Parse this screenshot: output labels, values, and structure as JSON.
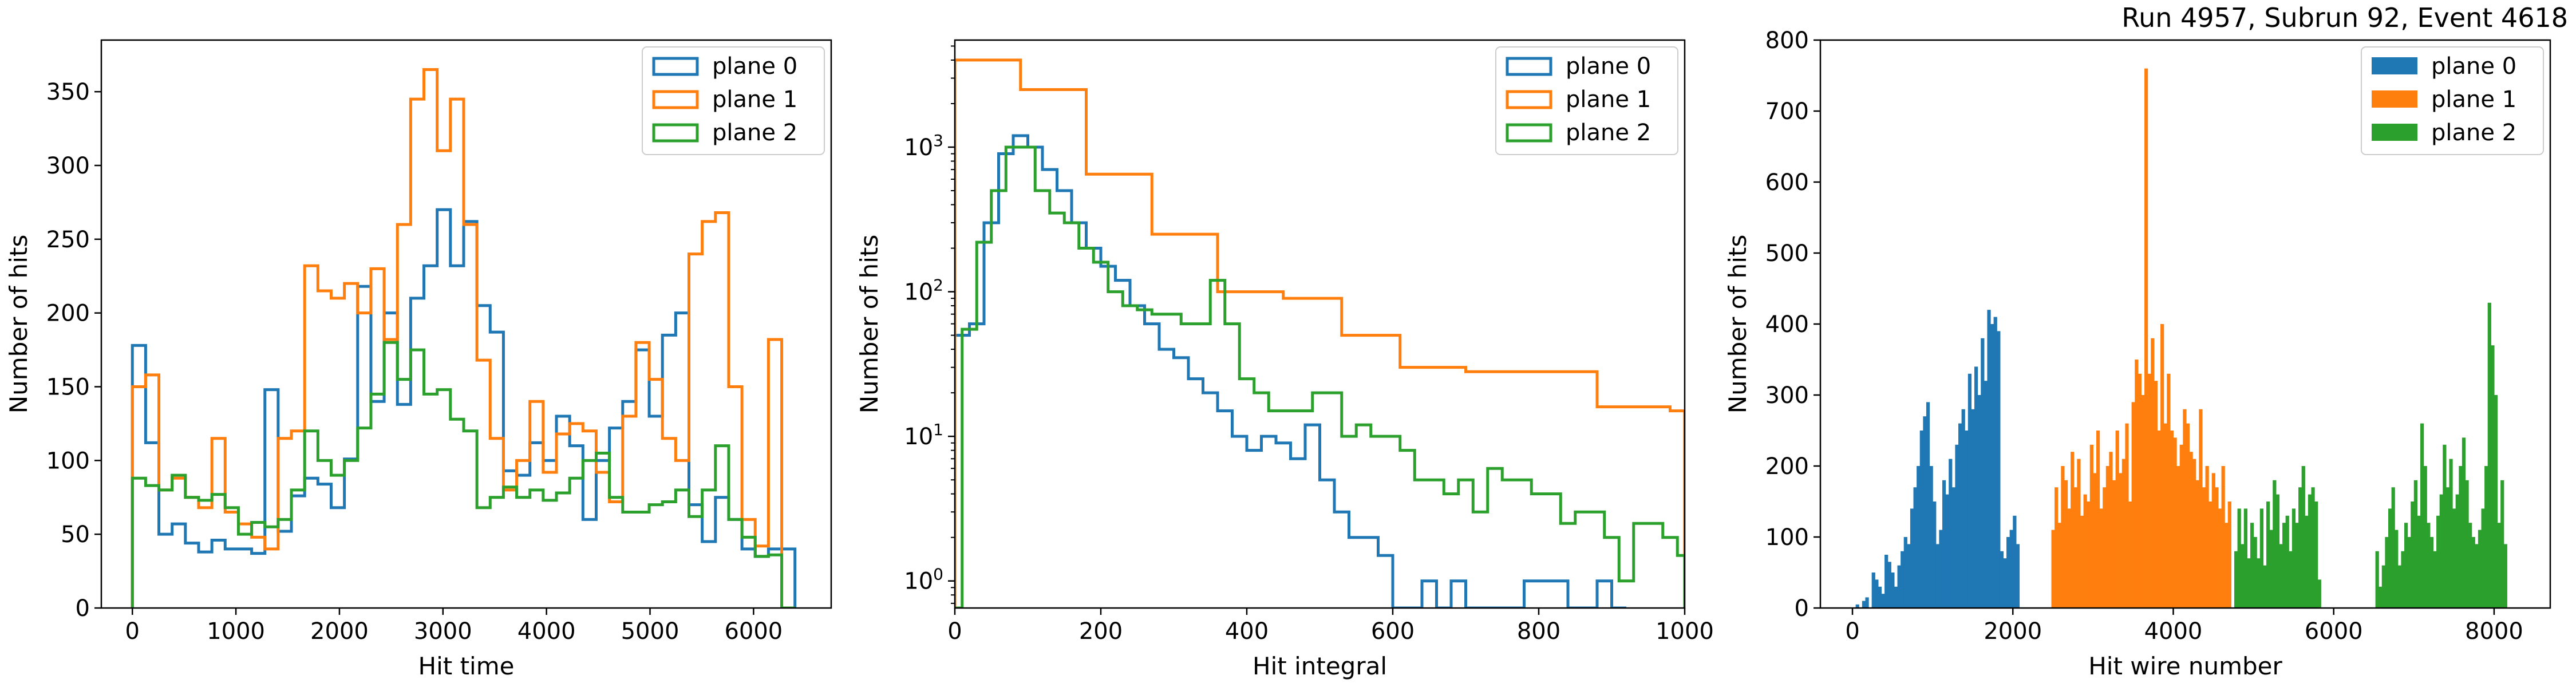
{
  "header": {
    "run_info": "Run 4957, Subrun 92, Event 4618"
  },
  "colors": {
    "plane0": "#1f77b4",
    "plane1": "#ff7f0e",
    "plane2": "#2ca02c"
  },
  "chart_data": [
    {
      "type": "step-histogram",
      "xlabel": "Hit time",
      "ylabel": "Number of hits",
      "xlim": [
        -300,
        6750
      ],
      "ylim": [
        0,
        385
      ],
      "xticks": [
        0,
        1000,
        2000,
        3000,
        4000,
        5000,
        6000
      ],
      "yticks": [
        0,
        50,
        100,
        150,
        200,
        250,
        300,
        350
      ],
      "legend": "top-right",
      "bin_edges": [
        0,
        128,
        256,
        384,
        512,
        640,
        768,
        896,
        1024,
        1152,
        1280,
        1408,
        1536,
        1664,
        1792,
        1920,
        2048,
        2176,
        2304,
        2432,
        2560,
        2688,
        2816,
        2944,
        3072,
        3200,
        3328,
        3456,
        3584,
        3712,
        3840,
        3968,
        4096,
        4224,
        4352,
        4480,
        4608,
        4736,
        4864,
        4992,
        5120,
        5248,
        5376,
        5504,
        5632,
        5760,
        5888,
        6016,
        6144,
        6272,
        6400
      ],
      "series": [
        {
          "name": "plane 0",
          "values": [
            178,
            112,
            50,
            57,
            44,
            38,
            46,
            40,
            40,
            37,
            148,
            52,
            76,
            88,
            84,
            68,
            101,
            218,
            140,
            200,
            138,
            210,
            232,
            270,
            232,
            262,
            205,
            187,
            93,
            90,
            112,
            100,
            130,
            110,
            60,
            100,
            122,
            140,
            175,
            130,
            185,
            200,
            70,
            45,
            75,
            60,
            40,
            35,
            40,
            40
          ]
        },
        {
          "name": "plane 1",
          "values": [
            150,
            158,
            80,
            88,
            75,
            68,
            115,
            65,
            57,
            48,
            40,
            115,
            120,
            232,
            215,
            210,
            220,
            200,
            230,
            182,
            260,
            345,
            365,
            310,
            345,
            260,
            168,
            115,
            80,
            100,
            140,
            92,
            118,
            125,
            120,
            92,
            72,
            130,
            180,
            155,
            115,
            100,
            240,
            262,
            268,
            150,
            60,
            42,
            182,
            0
          ]
        },
        {
          "name": "plane 2",
          "values": [
            88,
            83,
            80,
            90,
            75,
            73,
            77,
            68,
            50,
            58,
            55,
            60,
            80,
            120,
            100,
            90,
            100,
            122,
            145,
            180,
            155,
            175,
            145,
            148,
            128,
            120,
            68,
            75,
            82,
            75,
            80,
            73,
            78,
            88,
            100,
            105,
            75,
            65,
            65,
            70,
            72,
            80,
            62,
            80,
            110,
            60,
            48,
            35,
            36,
            0
          ]
        }
      ]
    },
    {
      "type": "step-histogram",
      "xlabel": "Hit integral",
      "ylabel": "Number of hits",
      "log_y": true,
      "xlim": [
        0,
        1000
      ],
      "ylim": [
        0.65,
        5500
      ],
      "xticks": [
        0,
        200,
        400,
        600,
        800,
        1000
      ],
      "yticks": [
        1,
        10,
        100,
        1000
      ],
      "ytick_labels": [
        "10^0",
        "10^1",
        "10^2",
        "10^3"
      ],
      "legend": "top-right",
      "series": [
        {
          "name": "plane 0",
          "bin_edges": [
            0,
            20,
            40,
            60,
            80,
            100,
            120,
            140,
            160,
            180,
            200,
            220,
            240,
            260,
            280,
            300,
            320,
            340,
            360,
            380,
            400,
            420,
            440,
            460,
            480,
            500,
            520,
            540,
            560,
            580,
            600,
            620,
            640,
            660,
            680,
            700,
            720,
            740,
            760,
            780,
            800,
            820,
            840,
            860,
            880,
            900,
            920
          ],
          "values": [
            50,
            60,
            300,
            900,
            1200,
            1000,
            700,
            500,
            300,
            200,
            150,
            120,
            80,
            60,
            40,
            35,
            25,
            20,
            15,
            10,
            8,
            10,
            9,
            7,
            12,
            5,
            3,
            2,
            2,
            1.5,
            0.5,
            0.5,
            1,
            0.5,
            1,
            0.5,
            0.5,
            0.5,
            0.5,
            1,
            1,
            1,
            0.5,
            0.5,
            1,
            0.5
          ]
        },
        {
          "name": "plane 1",
          "bin_edges": [
            0,
            90,
            180,
            270,
            360,
            450,
            530,
            610,
            700,
            800,
            880,
            980,
            1000
          ],
          "values": [
            4000,
            2500,
            650,
            250,
            100,
            90,
            50,
            30,
            28,
            28,
            16,
            15
          ]
        },
        {
          "name": "plane 2",
          "bin_edges": [
            0,
            10,
            30,
            50,
            70,
            90,
            110,
            130,
            150,
            170,
            190,
            210,
            230,
            250,
            270,
            290,
            310,
            330,
            350,
            370,
            390,
            410,
            430,
            450,
            470,
            490,
            510,
            530,
            550,
            570,
            590,
            610,
            630,
            650,
            670,
            690,
            710,
            730,
            750,
            770,
            790,
            810,
            830,
            850,
            870,
            890,
            910,
            930,
            950,
            970,
            990,
            1000
          ],
          "values": [
            0.5,
            55,
            220,
            500,
            1000,
            1000,
            500,
            350,
            300,
            200,
            160,
            100,
            80,
            75,
            70,
            70,
            60,
            60,
            120,
            60,
            25,
            20,
            15,
            15,
            15,
            20,
            20,
            10,
            12,
            10,
            10,
            8,
            5,
            5,
            4,
            5,
            3,
            6,
            5,
            5,
            4,
            4,
            2.5,
            3,
            3,
            2,
            1,
            2.5,
            2.5,
            2,
            1.5
          ]
        }
      ]
    },
    {
      "type": "bar",
      "xlabel": "Hit wire number",
      "ylabel": "Number of hits",
      "xlim": [
        -400,
        8700
      ],
      "ylim": [
        0,
        800
      ],
      "xticks": [
        0,
        2000,
        4000,
        6000,
        8000
      ],
      "yticks": [
        0,
        100,
        200,
        300,
        400,
        500,
        600,
        700,
        800
      ],
      "legend": "top-right",
      "bin_width": 40,
      "series": [
        {
          "name": "plane 0",
          "start": 0,
          "values": [
            0,
            5,
            0,
            10,
            15,
            0,
            50,
            40,
            30,
            20,
            75,
            65,
            50,
            30,
            60,
            80,
            100,
            90,
            140,
            170,
            200,
            250,
            270,
            290,
            200,
            150,
            90,
            110,
            180,
            160,
            210,
            170,
            230,
            260,
            280,
            250,
            330,
            280,
            340,
            300,
            380,
            320,
            420,
            400,
            410,
            390,
            80,
            70,
            100,
            110,
            130,
            90,
            0
          ]
        },
        {
          "name": "plane 1",
          "start": 2480,
          "values": [
            110,
            170,
            120,
            200,
            180,
            140,
            220,
            170,
            210,
            130,
            160,
            150,
            230,
            190,
            250,
            140,
            170,
            200,
            220,
            180,
            250,
            190,
            210,
            260,
            150,
            290,
            350,
            330,
            300,
            760,
            330,
            380,
            320,
            250,
            400,
            260,
            330,
            250,
            240,
            200,
            230,
            280,
            260,
            220,
            210,
            180,
            280,
            170,
            200,
            150,
            190,
            170,
            140,
            200,
            120,
            150,
            0
          ]
        },
        {
          "name": "plane 2",
          "start": 4760,
          "values": [
            80,
            140,
            90,
            140,
            70,
            120,
            100,
            70,
            140,
            60,
            150,
            110,
            180,
            160,
            90,
            120,
            130,
            80,
            140,
            120,
            170,
            200,
            130,
            160,
            170,
            150,
            40,
            0,
            0,
            0,
            0,
            0,
            0,
            0,
            0,
            0,
            0,
            0,
            0,
            0,
            0,
            0,
            0,
            0,
            80,
            30,
            60,
            100,
            140,
            170,
            110,
            60,
            80,
            120,
            100,
            150,
            180,
            130,
            260,
            200,
            120,
            100,
            80,
            130,
            160,
            230,
            170,
            210,
            140,
            160,
            200,
            240,
            180,
            120,
            100,
            90,
            110,
            140,
            200,
            430,
            370,
            300,
            120,
            180,
            90
          ]
        }
      ]
    }
  ]
}
